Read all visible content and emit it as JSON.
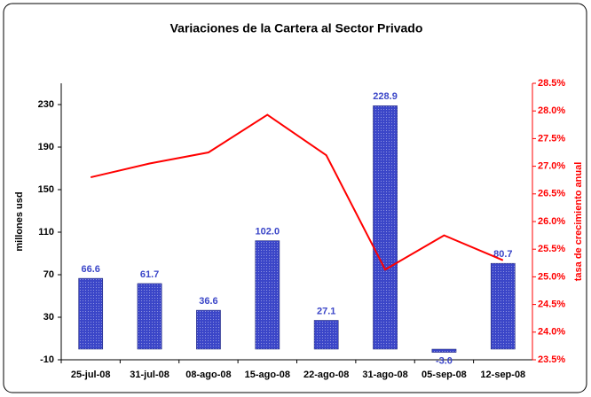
{
  "chart_data": {
    "type": "bar-line",
    "title": "Variaciones de la Cartera al Sector Privado",
    "ylabel": "millones usd",
    "y2label": "tasa de crecimiento anual",
    "categories": [
      "25-jul-08",
      "31-jul-08",
      "08-ago-08",
      "15-ago-08",
      "22-ago-08",
      "31-ago-08",
      "05-sep-08",
      "12-sep-08"
    ],
    "series": [
      {
        "type": "bar",
        "color": "#3b46c8",
        "values": [
          66.6,
          61.7,
          36.6,
          102.0,
          27.1,
          228.9,
          -3.0,
          80.7
        ],
        "value_labels": [
          "66.6",
          "61.7",
          "36.6",
          "102.0",
          "27.1",
          "228.9",
          "-3.0",
          "80.7"
        ]
      },
      {
        "type": "line",
        "axis": "y2",
        "color": "#ff0000",
        "values": [
          26.8,
          27.05,
          27.25,
          27.93,
          27.2,
          25.13,
          25.75,
          25.3
        ]
      }
    ],
    "ylim": [
      -10,
      250
    ],
    "yticks": [
      -10,
      30,
      70,
      110,
      150,
      190,
      230
    ],
    "y2lim": [
      23.5,
      28.5
    ],
    "y2ticks": [
      {
        "value": 23.5,
        "label": "23.5%"
      },
      {
        "value": 24.0,
        "label": "24.0%"
      },
      {
        "value": 24.5,
        "label": "24.5%"
      },
      {
        "value": 25.0,
        "label": "25.0%"
      },
      {
        "value": 25.5,
        "label": "25.5%"
      },
      {
        "value": 26.0,
        "label": "26.0%"
      },
      {
        "value": 26.5,
        "label": "26.5%"
      },
      {
        "value": 27.0,
        "label": "27.0%"
      },
      {
        "value": 27.5,
        "label": "27.5%"
      },
      {
        "value": 28.0,
        "label": "28.0%"
      },
      {
        "value": 28.5,
        "label": "28.5%"
      }
    ],
    "grid": false
  }
}
